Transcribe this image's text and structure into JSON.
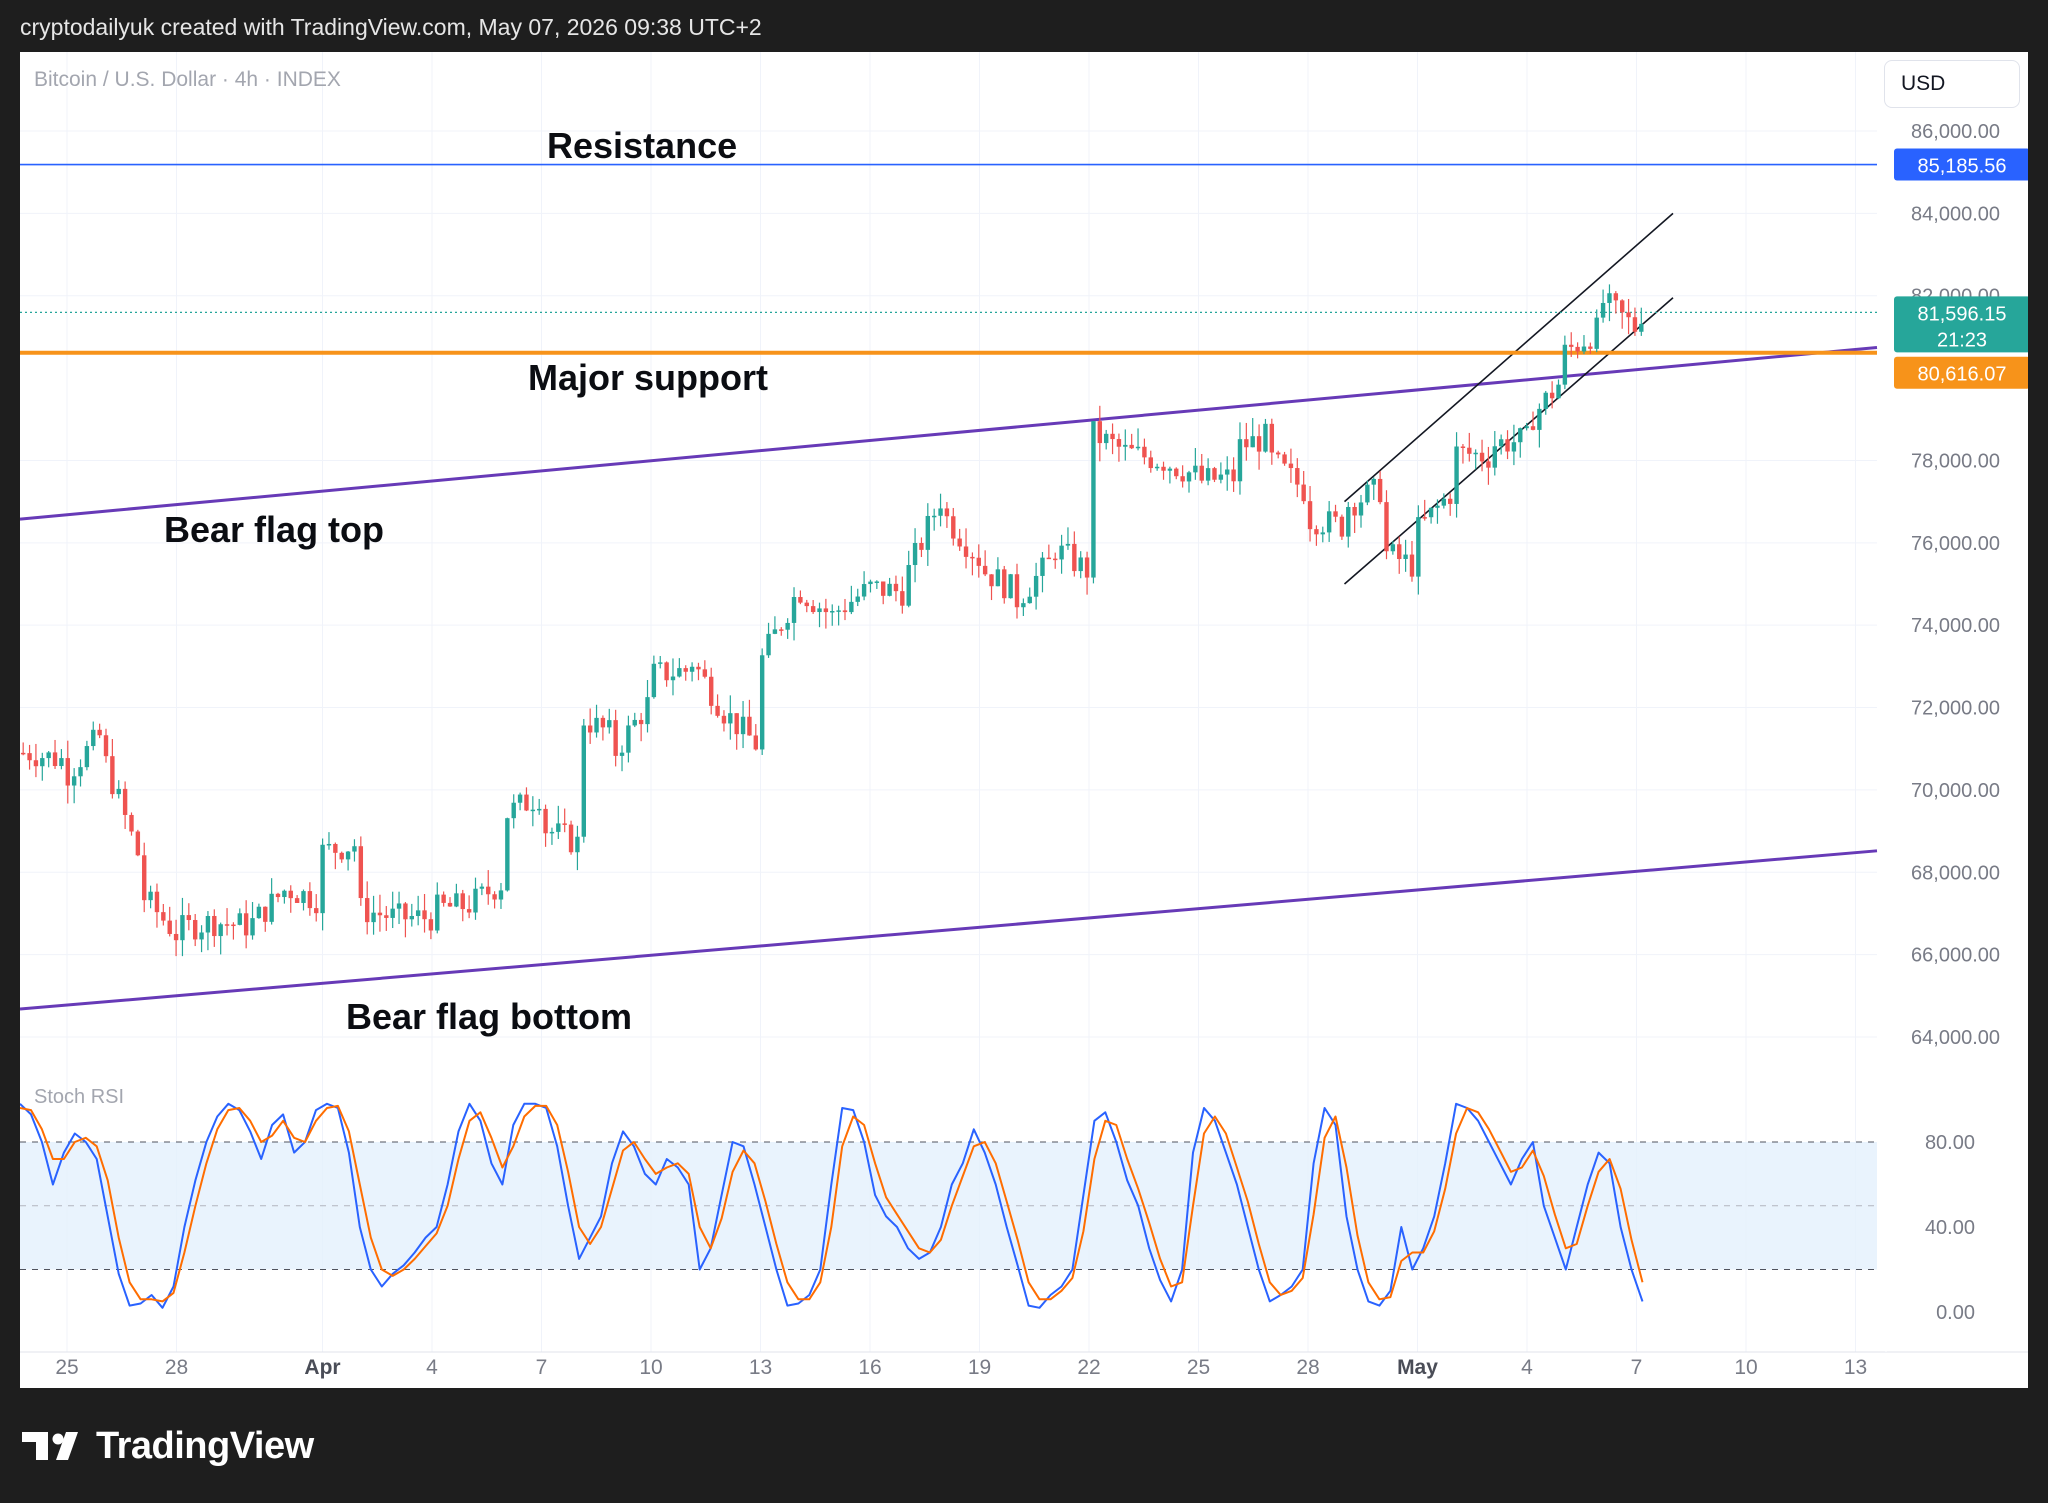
{
  "header": {
    "title": "cryptodailyuk created with TradingView.com, May 07, 2026 09:38 UTC+2"
  },
  "chart_header": {
    "symbol": "Bitcoin / U.S. Dollar · 4h · INDEX",
    "currency_button": "USD"
  },
  "annotations": {
    "resistance": "Resistance",
    "major_support": "Major support",
    "bear_flag_top": "Bear flag top",
    "bear_flag_bottom": "Bear flag bottom"
  },
  "price_labels": {
    "resistance": "85,185.56",
    "last_price": "81,596.15",
    "countdown": "21:23",
    "support": "80,616.07"
  },
  "stoch_title": "Stoch RSI",
  "footer": {
    "brand": "TradingView"
  },
  "colors": {
    "up": "#26a69a",
    "down": "#ef5350",
    "resistance": "#2962ff",
    "support": "#f7931a",
    "flag": "#673ab7",
    "stoch_k": "#2962ff",
    "stoch_d": "#ff6d00"
  },
  "chart_data": [
    {
      "type": "candlestick",
      "title": "Bitcoin / U.S. Dollar · 4h · INDEX",
      "ylim": [
        63000,
        87000
      ],
      "yticks": [
        "86,000.00",
        "84,000.00",
        "82,000.00",
        "78,000.00",
        "76,000.00",
        "74,000.00",
        "72,000.00",
        "70,000.00",
        "68,000.00",
        "66,000.00",
        "64,000.00"
      ],
      "xticks": [
        "25",
        "28",
        "Apr",
        "4",
        "7",
        "10",
        "13",
        "16",
        "19",
        "22",
        "25",
        "28",
        "May",
        "4",
        "7",
        "10",
        "13"
      ],
      "levels": {
        "resistance": 85185.56,
        "major_support": 80616.07,
        "last_price": 81596.15
      },
      "trendlines": {
        "bear_flag_top": [
          [
            "Mar 24",
            76600
          ],
          [
            "May 10",
            80450
          ]
        ],
        "bear_flag_bottom": [
          [
            "Mar 24",
            64700
          ],
          [
            "May 10",
            68250
          ]
        ],
        "channel_upper": [
          [
            "Apr 29",
            77000
          ],
          [
            "May 8",
            84000
          ]
        ],
        "channel_lower": [
          [
            "Apr 29",
            75000
          ],
          [
            "May 8",
            81950
          ]
        ]
      },
      "close_path": [
        [
          "Mar 24",
          70900
        ],
        [
          "Mar 25",
          70700
        ],
        [
          "Mar 25",
          70400
        ],
        [
          "Mar 26",
          71400
        ],
        [
          "Mar 26",
          70800
        ],
        [
          "Mar 27",
          68300
        ],
        [
          "Mar 27",
          67500
        ],
        [
          "Mar 28",
          66500
        ],
        [
          "Mar 28",
          66600
        ],
        [
          "Mar 29",
          66800
        ],
        [
          "Mar 30",
          66700
        ],
        [
          "Mar 31",
          67600
        ],
        [
          "Apr 1",
          67300
        ],
        [
          "Apr 1",
          68500
        ],
        [
          "Apr 2",
          68700
        ],
        [
          "Apr 2",
          67100
        ],
        [
          "Apr 3",
          66900
        ],
        [
          "Apr 4",
          66900
        ],
        [
          "Apr 4",
          67100
        ],
        [
          "Apr 5",
          67200
        ],
        [
          "Apr 6",
          67800
        ],
        [
          "Apr 6",
          69400
        ],
        [
          "Apr 7",
          69900
        ],
        [
          "Apr 7",
          69100
        ],
        [
          "Apr 8",
          68700
        ],
        [
          "Apr 8",
          71800
        ],
        [
          "Apr 9",
          71300
        ],
        [
          "Apr 9",
          70900
        ],
        [
          "Apr 10",
          72200
        ],
        [
          "Apr 10",
          72800
        ],
        [
          "Apr 11",
          72900
        ],
        [
          "Apr 11",
          73300
        ],
        [
          "Apr 12",
          71900
        ],
        [
          "Apr 13",
          71000
        ],
        [
          "Apr 13",
          70900
        ],
        [
          "Apr 13",
          73100
        ],
        [
          "Apr 14",
          74800
        ],
        [
          "Apr 14",
          74900
        ],
        [
          "Apr 15",
          74200
        ],
        [
          "Apr 15",
          74300
        ],
        [
          "Apr 16",
          74900
        ],
        [
          "Apr 17",
          74800
        ],
        [
          "Apr 17",
          75200
        ],
        [
          "Apr 18",
          77200
        ],
        [
          "Apr 18",
          76700
        ],
        [
          "Apr 19",
          75600
        ],
        [
          "Apr 19",
          75400
        ],
        [
          "Apr 20",
          74800
        ],
        [
          "Apr 20",
          74600
        ],
        [
          "Apr 21",
          75600
        ],
        [
          "Apr 21",
          75900
        ],
        [
          "Apr 22",
          75300
        ],
        [
          "Apr 22",
          77400
        ],
        [
          "Apr 22",
          78700
        ],
        [
          "Apr 23",
          78200
        ],
        [
          "Apr 24",
          78000
        ],
        [
          "Apr 25",
          77600
        ],
        [
          "Apr 25",
          77500
        ],
        [
          "Apr 26",
          77600
        ],
        [
          "Apr 26",
          78300
        ],
        [
          "Apr 27",
          78600
        ],
        [
          "Apr 27",
          78000
        ],
        [
          "Apr 28",
          77200
        ],
        [
          "Apr 28",
          76600
        ],
        [
          "Apr 29",
          76400
        ],
        [
          "Apr 29",
          76900
        ],
        [
          "Apr 30",
          77300
        ],
        [
          "Apr 30",
          75800
        ],
        [
          "May 1",
          75400
        ],
        [
          "May 1",
          75900
        ],
        [
          "May 1",
          76300
        ],
        [
          "May 2",
          77300
        ],
        [
          "May 2",
          78200
        ],
        [
          "May 3",
          78100
        ],
        [
          "May 3",
          78400
        ],
        [
          "May 4",
          78500
        ],
        [
          "May 4",
          79300
        ],
        [
          "May 4",
          78900
        ],
        [
          "May 5",
          80000
        ],
        [
          "May 5",
          80600
        ],
        [
          "May 6",
          81200
        ],
        [
          "May 6",
          81300
        ],
        [
          "May 6",
          82200
        ],
        [
          "May 6",
          81900
        ],
        [
          "May 7",
          81200
        ],
        [
          "May 7",
          81596
        ]
      ],
      "xlabel": "",
      "ylabel": ""
    },
    {
      "type": "line",
      "title": "Stoch RSI",
      "ylim": [
        0,
        100
      ],
      "yticks": [
        "80.00",
        "40.00",
        "0.00"
      ],
      "bands": {
        "upper": 80,
        "middle": 50,
        "lower": 20
      },
      "series": [
        {
          "color": "#2962ff",
          "values": [
            98,
            93,
            80,
            60,
            75,
            84,
            80,
            72,
            45,
            18,
            3,
            4,
            8,
            2,
            12,
            40,
            62,
            80,
            92,
            98,
            95,
            85,
            72,
            88,
            93,
            75,
            80,
            95,
            98,
            96,
            75,
            40,
            20,
            12,
            18,
            22,
            28,
            35,
            40,
            60,
            85,
            98,
            90,
            70,
            60,
            88,
            98,
            98,
            96,
            78,
            50,
            25,
            35,
            45,
            70,
            85,
            78,
            65,
            60,
            72,
            68,
            60,
            20,
            30,
            55,
            80,
            78,
            60,
            40,
            20,
            3,
            4,
            8,
            20,
            60,
            96,
            95,
            80,
            55,
            45,
            40,
            30,
            25,
            28,
            40,
            60,
            70,
            86,
            75,
            60,
            40,
            22,
            3,
            2,
            8,
            12,
            20,
            55,
            90,
            94,
            80,
            62,
            50,
            30,
            15,
            5,
            20,
            75,
            96,
            90,
            75,
            60,
            40,
            20,
            5,
            8,
            12,
            20,
            70,
            96,
            88,
            45,
            20,
            5,
            3,
            10,
            40,
            20,
            30,
            45,
            70,
            98,
            96,
            90,
            80,
            70,
            60,
            72,
            80,
            50,
            35,
            20,
            40,
            60,
            75,
            70,
            40,
            20,
            5
          ]
        },
        {
          "color": "#ff6d00",
          "values": [
            96,
            95,
            86,
            72,
            72,
            80,
            82,
            78,
            62,
            35,
            14,
            6,
            6,
            5,
            9,
            28,
            50,
            70,
            86,
            95,
            96,
            90,
            80,
            83,
            90,
            82,
            80,
            90,
            96,
            97,
            85,
            60,
            35,
            20,
            17,
            20,
            25,
            31,
            37,
            50,
            72,
            90,
            94,
            82,
            68,
            78,
            92,
            97,
            97,
            88,
            66,
            40,
            32,
            40,
            58,
            76,
            80,
            72,
            65,
            68,
            70,
            65,
            40,
            30,
            44,
            66,
            76,
            70,
            52,
            32,
            14,
            6,
            6,
            14,
            40,
            78,
            92,
            88,
            70,
            54,
            46,
            38,
            30,
            28,
            34,
            50,
            64,
            78,
            80,
            70,
            52,
            34,
            14,
            6,
            6,
            10,
            16,
            38,
            72,
            90,
            88,
            72,
            58,
            42,
            25,
            12,
            14,
            50,
            84,
            92,
            84,
            68,
            52,
            32,
            14,
            8,
            10,
            16,
            46,
            82,
            92,
            68,
            36,
            14,
            6,
            7,
            24,
            28,
            28,
            38,
            58,
            84,
            96,
            94,
            86,
            76,
            66,
            68,
            76,
            64,
            46,
            30,
            32,
            50,
            66,
            72,
            58,
            34,
            14
          ]
        }
      ]
    }
  ]
}
